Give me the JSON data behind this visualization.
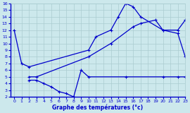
{
  "line1_x": [
    0,
    1,
    2,
    10,
    11,
    13,
    14,
    15,
    16,
    17,
    20,
    22,
    23
  ],
  "line1_y": [
    12,
    7,
    6.5,
    9,
    11,
    12,
    14,
    16,
    15.5,
    14,
    12,
    11.5,
    8
  ],
  "line2_x": [
    2,
    3,
    10,
    13,
    16,
    17,
    19,
    20,
    22,
    23
  ],
  "line2_y": [
    5,
    5,
    8,
    10,
    12.5,
    13,
    13.5,
    12,
    12,
    13.5
  ],
  "line3_x": [
    2,
    3,
    4,
    5,
    6,
    7,
    8,
    9,
    10,
    15,
    20,
    22,
    23
  ],
  "line3_y": [
    4.5,
    4.5,
    4,
    3.5,
    2.8,
    2.5,
    2,
    6,
    5,
    5,
    5,
    5,
    5
  ],
  "line_color": "#0000cc",
  "bg_color": "#cce8ec",
  "grid_color": "#aaccd0",
  "xlabel": "Graphe des températures (°c)",
  "xlim": [
    -0.5,
    23
  ],
  "ylim": [
    2,
    16
  ],
  "xticks": [
    0,
    1,
    2,
    3,
    4,
    5,
    6,
    7,
    8,
    9,
    10,
    11,
    12,
    13,
    14,
    15,
    16,
    17,
    18,
    19,
    20,
    21,
    22,
    23
  ],
  "yticks": [
    2,
    3,
    4,
    5,
    6,
    7,
    8,
    9,
    10,
    11,
    12,
    13,
    14,
    15,
    16
  ]
}
